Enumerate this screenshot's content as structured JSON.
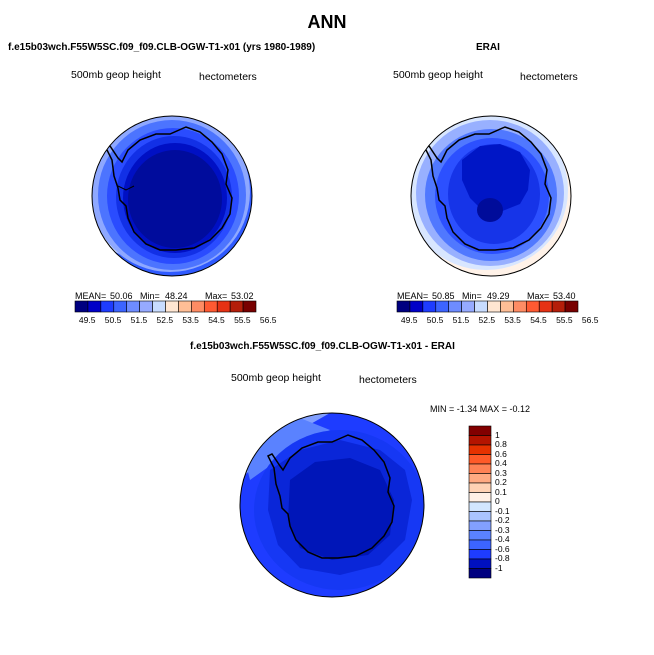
{
  "title": "ANN",
  "colors": {
    "scale_diverging": [
      "#000080",
      "#0000c8",
      "#1e3cff",
      "#3c64ff",
      "#6e8cff",
      "#96aaff",
      "#c8dcff",
      "#ffe6d2",
      "#ffbe96",
      "#ff8c64",
      "#ff5a32",
      "#e63214",
      "#b41e0a",
      "#780000"
    ],
    "diff_scale": [
      "#000080",
      "#0010c0",
      "#1e3cff",
      "#3c64ff",
      "#5a82ff",
      "#82a0ff",
      "#aac4ff",
      "#d2e6ff",
      "#fff0e6",
      "#ffd2b4",
      "#ffaa82",
      "#ff8255",
      "#ff5a28",
      "#e63200",
      "#b41400",
      "#820000"
    ]
  },
  "panels": [
    {
      "id": "model",
      "title": "f.e15b03wch.F55W5SC.f09_f09.CLB-OGW-T1-x01 (yrs 1980-1989)",
      "variable": "500mb geop height",
      "units": "hectometers",
      "stats": {
        "mean_label": "MEAN=",
        "mean": "50.06",
        "min_label": "Min=",
        "min": "48.24",
        "max_label": "Max=",
        "max": "53.02"
      },
      "colorbar_ticks": [
        "49.5",
        "50.5",
        "51.5",
        "52.5",
        "53.5",
        "54.5",
        "55.5",
        "56.5"
      ]
    },
    {
      "id": "obs",
      "title": "ERAI",
      "variable": "500mb geop height",
      "units": "hectometers",
      "stats": {
        "mean_label": "MEAN=",
        "mean": "50.85",
        "min_label": "Min=",
        "min": "49.29",
        "max_label": "Max=",
        "max": "53.40"
      },
      "colorbar_ticks": [
        "49.5",
        "50.5",
        "51.5",
        "52.5",
        "53.5",
        "54.5",
        "55.5",
        "56.5"
      ]
    },
    {
      "id": "diff",
      "title": "f.e15b03wch.F55W5SC.f09_f09.CLB-OGW-T1-x01 - ERAI",
      "variable": "500mb geop height",
      "units": "hectometers",
      "stats_text": "MIN =  -1.34  MAX =  -0.12",
      "colorbar_ticks": [
        "1",
        "0.8",
        "0.6",
        "0.4",
        "0.3",
        "0.2",
        "0.1",
        "0",
        "-0.1",
        "-0.2",
        "-0.3",
        "-0.4",
        "-0.6",
        "-0.8",
        "-1"
      ]
    }
  ]
}
